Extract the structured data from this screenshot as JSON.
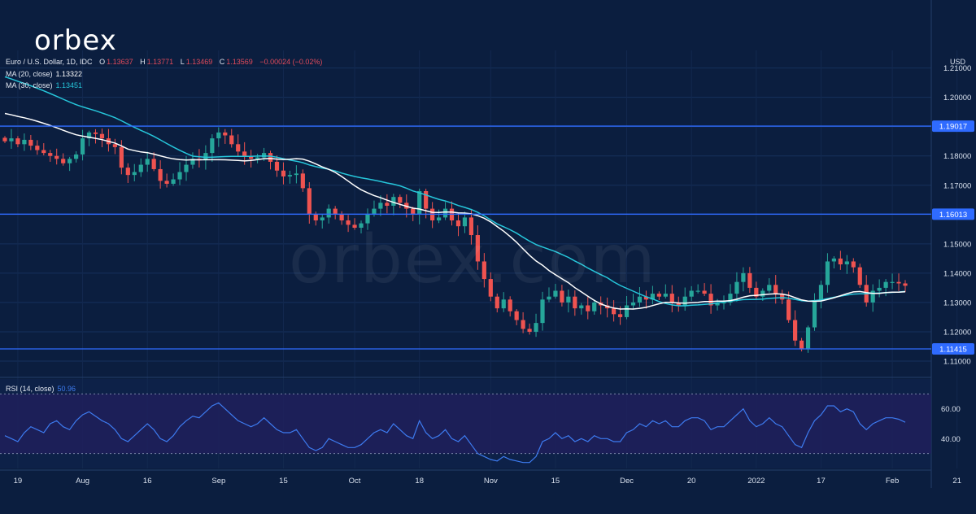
{
  "brand": {
    "logo_text": "orbex",
    "watermark_text": "orbex.com"
  },
  "chart_data": {
    "type": "candlestick",
    "title": "Euro / U.S. Dollar, 1D, IDC",
    "ohlc_labels": {
      "O": "1.13637",
      "H": "1.13771",
      "L": "1.13469",
      "C": "1.13569",
      "change": "−0.00024 (−0.02%)"
    },
    "currency_label": "USD",
    "ylim": [
      1.105,
      1.216
    ],
    "y_ticks": [
      "1.21000",
      "1.20000",
      "1.19000",
      "1.18000",
      "1.17000",
      "1.16000",
      "1.15000",
      "1.14000",
      "1.13000",
      "1.12000",
      "1.11000"
    ],
    "x_ticks": [
      {
        "label": "19",
        "index": 2
      },
      {
        "label": "Aug",
        "index": 12
      },
      {
        "label": "16",
        "index": 22
      },
      {
        "label": "Sep",
        "index": 33
      },
      {
        "label": "15",
        "index": 43
      },
      {
        "label": "Oct",
        "index": 54
      },
      {
        "label": "18",
        "index": 64
      },
      {
        "label": "Nov",
        "index": 75
      },
      {
        "label": "15",
        "index": 85
      },
      {
        "label": "Dec",
        "index": 96
      },
      {
        "label": "20",
        "index": 106
      },
      {
        "label": "2022",
        "index": 116
      },
      {
        "label": "17",
        "index": 126
      },
      {
        "label": "Feb",
        "index": 137
      },
      {
        "label": "21",
        "index": 147
      }
    ],
    "horizontal_levels": [
      {
        "value": 1.19017,
        "label": "1.19017"
      },
      {
        "value": 1.16013,
        "label": "1.16013"
      },
      {
        "value": 1.11415,
        "label": "1.11415"
      }
    ],
    "close": [
      1.185,
      1.186,
      1.184,
      1.1855,
      1.1835,
      1.182,
      1.181,
      1.18,
      1.179,
      1.1775,
      1.179,
      1.1805,
      1.186,
      1.188,
      1.1875,
      1.186,
      1.184,
      1.183,
      1.176,
      1.1735,
      1.1745,
      1.177,
      1.179,
      1.1755,
      1.1715,
      1.1705,
      1.172,
      1.1745,
      1.177,
      1.179,
      1.1785,
      1.181,
      1.186,
      1.188,
      1.187,
      1.184,
      1.1815,
      1.18,
      1.179,
      1.1795,
      1.181,
      1.178,
      1.175,
      1.173,
      1.1735,
      1.174,
      1.169,
      1.16,
      1.158,
      1.159,
      1.162,
      1.16,
      1.158,
      1.1565,
      1.1555,
      1.157,
      1.16,
      1.162,
      1.164,
      1.163,
      1.166,
      1.164,
      1.162,
      1.16,
      1.168,
      1.162,
      1.158,
      1.159,
      1.162,
      1.158,
      1.156,
      1.159,
      1.153,
      1.144,
      1.138,
      1.132,
      1.128,
      1.131,
      1.127,
      1.124,
      1.121,
      1.12,
      1.123,
      1.131,
      1.132,
      1.134,
      1.13,
      1.132,
      1.128,
      1.129,
      1.127,
      1.13,
      1.129,
      1.128,
      1.126,
      1.125,
      1.129,
      1.13,
      1.132,
      1.131,
      1.133,
      1.132,
      1.133,
      1.13,
      1.129,
      1.132,
      1.134,
      1.134,
      1.133,
      1.129,
      1.13,
      1.13,
      1.133,
      1.137,
      1.14,
      1.135,
      1.132,
      1.134,
      1.136,
      1.133,
      1.131,
      1.124,
      1.117,
      1.114,
      1.1215,
      1.1305,
      1.136,
      1.144,
      1.145,
      1.143,
      1.144,
      1.142,
      1.136,
      1.13,
      1.134,
      1.135,
      1.137,
      1.137,
      1.1365,
      1.1357
    ],
    "ma_20": {
      "label": "MA (20, close)",
      "last": "1.13322",
      "color": "#ffffff"
    },
    "ma_30": {
      "label": "MA (30, close)",
      "last": "1.13451",
      "color": "#26c6da"
    },
    "rsi": {
      "label": "RSI (14, close)",
      "last": "50.96",
      "color": "#3d7bf0",
      "ylim": [
        20,
        80
      ],
      "band": [
        30,
        70
      ],
      "y_ticks": [
        "60.00",
        "40.00"
      ],
      "values": [
        42,
        40,
        38,
        44,
        48,
        46,
        44,
        50,
        52,
        48,
        46,
        52,
        56,
        58,
        55,
        52,
        50,
        46,
        40,
        38,
        42,
        46,
        50,
        46,
        40,
        38,
        42,
        48,
        52,
        55,
        54,
        58,
        62,
        64,
        60,
        56,
        52,
        50,
        48,
        50,
        54,
        50,
        46,
        44,
        44,
        46,
        40,
        34,
        32,
        34,
        40,
        38,
        36,
        34,
        34,
        36,
        40,
        44,
        46,
        44,
        50,
        46,
        42,
        40,
        52,
        44,
        40,
        42,
        46,
        40,
        38,
        42,
        36,
        30,
        28,
        26,
        25,
        28,
        26,
        25,
        24,
        24,
        28,
        38,
        40,
        44,
        40,
        42,
        38,
        40,
        38,
        42,
        40,
        40,
        38,
        38,
        44,
        46,
        50,
        48,
        52,
        50,
        52,
        48,
        48,
        52,
        54,
        54,
        52,
        46,
        48,
        48,
        52,
        56,
        60,
        52,
        48,
        50,
        54,
        50,
        48,
        42,
        36,
        34,
        44,
        52,
        56,
        62,
        62,
        58,
        60,
        58,
        50,
        46,
        50,
        52,
        54,
        54,
        53,
        51
      ]
    },
    "colors": {
      "up": "#26a69a",
      "down": "#ef5350",
      "level": "#2f6bff",
      "label_bg": "#2f6bff"
    }
  }
}
